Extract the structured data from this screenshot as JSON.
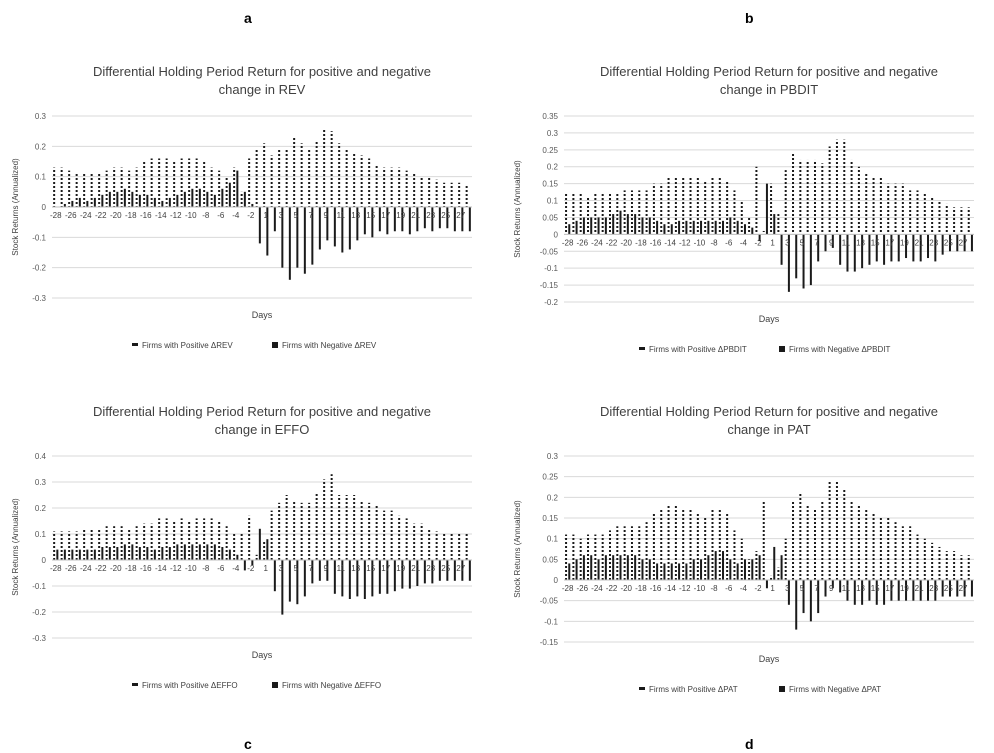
{
  "panel_letters": [
    "a",
    "b",
    "c",
    "d"
  ],
  "chart_data": [
    {
      "panel": "a",
      "type": "bar",
      "title_lines": [
        "Differential Holding Period Return for positive and negative",
        "change in REV"
      ],
      "xlabel": "Days",
      "ylabel": "Stock Returns (Annualized)",
      "ylim": [
        -0.3,
        0.3
      ],
      "yticks": [
        "-0.3",
        "-0.2",
        "-0.1",
        "0",
        "0.1",
        "0.2",
        "0.3"
      ],
      "ytick_values": [
        -0.3,
        -0.2,
        -0.1,
        0,
        0.1,
        0.2,
        0.3
      ],
      "xticks": [
        "-28",
        "-26",
        "-24",
        "-22",
        "-20",
        "-18",
        "-16",
        "-14",
        "-12",
        "-10",
        "-8",
        "-6",
        "-4",
        "-2",
        "1",
        "3",
        "5",
        "7",
        "9",
        "11",
        "13",
        "15",
        "17",
        "19",
        "21",
        "23",
        "25",
        "27"
      ],
      "grid": true,
      "legend_placement": "bottom",
      "categories": [
        "-28",
        "-27",
        "-26",
        "-25",
        "-24",
        "-23",
        "-22",
        "-21",
        "-20",
        "-19",
        "-18",
        "-17",
        "-16",
        "-15",
        "-14",
        "-13",
        "-12",
        "-11",
        "-10",
        "-9",
        "-8",
        "-7",
        "-6",
        "-5",
        "-4",
        "-3",
        "-2",
        "-1",
        "1",
        "2",
        "3",
        "4",
        "5",
        "6",
        "7",
        "8",
        "9",
        "10",
        "11",
        "12",
        "13",
        "14",
        "15",
        "16",
        "17",
        "18",
        "19",
        "20",
        "21",
        "22",
        "23",
        "24",
        "25",
        "26",
        "27",
        "28"
      ],
      "series": [
        {
          "name": "Firms with Positive ΔREV",
          "style": "dotted",
          "values": [
            0.13,
            0.13,
            0.12,
            0.11,
            0.11,
            0.11,
            0.11,
            0.12,
            0.13,
            0.13,
            0.12,
            0.13,
            0.15,
            0.16,
            0.16,
            0.16,
            0.15,
            0.16,
            0.16,
            0.16,
            0.15,
            0.13,
            0.12,
            0.1,
            0.13,
            0.05,
            0.16,
            0.19,
            0.21,
            0.17,
            0.19,
            0.19,
            0.23,
            0.21,
            0.19,
            0.22,
            0.26,
            0.25,
            0.21,
            0.19,
            0.18,
            0.17,
            0.16,
            0.14,
            0.13,
            0.13,
            0.13,
            0.12,
            0.11,
            0.1,
            0.1,
            0.09,
            0.08,
            0.08,
            0.08,
            0.07
          ]
        },
        {
          "name": "Firms with Negative ΔREV",
          "style": "solid",
          "values": [
            0.0,
            0.01,
            0.02,
            0.03,
            0.02,
            0.03,
            0.04,
            0.05,
            0.05,
            0.06,
            0.05,
            0.04,
            0.04,
            0.03,
            0.02,
            0.03,
            0.04,
            0.05,
            0.06,
            0.06,
            0.05,
            0.04,
            0.06,
            0.08,
            0.12,
            0.05,
            0.01,
            -0.12,
            -0.16,
            -0.08,
            -0.2,
            -0.24,
            -0.2,
            -0.22,
            -0.19,
            -0.14,
            -0.11,
            -0.13,
            -0.15,
            -0.14,
            -0.11,
            -0.09,
            -0.1,
            -0.08,
            -0.09,
            -0.08,
            -0.08,
            -0.09,
            -0.08,
            -0.07,
            -0.08,
            -0.07,
            -0.07,
            -0.08,
            -0.08,
            -0.08
          ]
        }
      ]
    },
    {
      "panel": "b",
      "type": "bar",
      "title_lines": [
        "Differential Holding Period Return for positive and negative",
        "change in PBDIT"
      ],
      "xlabel": "Days",
      "ylabel": "Stock Returns (Annualized)",
      "ylim": [
        -0.2,
        0.35
      ],
      "yticks": [
        "-0.2",
        "-0.15",
        "-0.1",
        "-0.05",
        "0",
        "0.05",
        "0.1",
        "0.15",
        "0.2",
        "0.25",
        "0.3",
        "0.35"
      ],
      "ytick_values": [
        -0.2,
        -0.15,
        -0.1,
        -0.05,
        0,
        0.05,
        0.1,
        0.15,
        0.2,
        0.25,
        0.3,
        0.35
      ],
      "xticks": [
        "-28",
        "-26",
        "-24",
        "-22",
        "-20",
        "-18",
        "-16",
        "-14",
        "-12",
        "-10",
        "-8",
        "-6",
        "-4",
        "-2",
        "1",
        "3",
        "5",
        "7",
        "9",
        "11",
        "13",
        "15",
        "17",
        "19",
        "21",
        "23",
        "25",
        "27"
      ],
      "grid": true,
      "legend_placement": "bottom",
      "categories": [
        "-28",
        "-27",
        "-26",
        "-25",
        "-24",
        "-23",
        "-22",
        "-21",
        "-20",
        "-19",
        "-18",
        "-17",
        "-16",
        "-15",
        "-14",
        "-13",
        "-12",
        "-11",
        "-10",
        "-9",
        "-8",
        "-7",
        "-6",
        "-5",
        "-4",
        "-3",
        "-2",
        "-1",
        "1",
        "2",
        "3",
        "4",
        "5",
        "6",
        "7",
        "8",
        "9",
        "10",
        "11",
        "12",
        "13",
        "14",
        "15",
        "16",
        "17",
        "18",
        "19",
        "20",
        "21",
        "22",
        "23",
        "24",
        "25",
        "26",
        "27",
        "28"
      ],
      "series": [
        {
          "name": "Firms with Positive ΔPBDIT",
          "style": "dotted",
          "values": [
            0.12,
            0.12,
            0.12,
            0.11,
            0.12,
            0.12,
            0.12,
            0.12,
            0.13,
            0.13,
            0.13,
            0.13,
            0.15,
            0.15,
            0.17,
            0.17,
            0.17,
            0.17,
            0.17,
            0.16,
            0.17,
            0.17,
            0.16,
            0.13,
            0.1,
            0.05,
            0.2,
            0.01,
            0.15,
            0.06,
            0.19,
            0.24,
            0.22,
            0.22,
            0.22,
            0.21,
            0.26,
            0.28,
            0.28,
            0.22,
            0.2,
            0.18,
            0.17,
            0.17,
            0.15,
            0.15,
            0.15,
            0.13,
            0.13,
            0.12,
            0.11,
            0.1,
            0.09,
            0.08,
            0.08,
            0.08
          ]
        },
        {
          "name": "Firms with Negative ΔPBDIT",
          "style": "solid",
          "values": [
            0.03,
            0.04,
            0.05,
            0.05,
            0.05,
            0.05,
            0.06,
            0.07,
            0.06,
            0.06,
            0.05,
            0.05,
            0.04,
            0.03,
            0.03,
            0.04,
            0.04,
            0.04,
            0.04,
            0.04,
            0.04,
            0.04,
            0.05,
            0.04,
            0.03,
            0.02,
            -0.02,
            0.15,
            0.06,
            -0.09,
            -0.17,
            -0.13,
            -0.16,
            -0.15,
            -0.08,
            -0.05,
            -0.04,
            -0.09,
            -0.11,
            -0.11,
            -0.1,
            -0.09,
            -0.08,
            -0.09,
            -0.08,
            -0.08,
            -0.07,
            -0.08,
            -0.08,
            -0.07,
            -0.08,
            -0.06,
            -0.05,
            -0.05,
            -0.05,
            -0.05
          ]
        }
      ]
    },
    {
      "panel": "c",
      "type": "bar",
      "title_lines": [
        "Differential Holding Period Return for positive and negative",
        "change in EFFO"
      ],
      "xlabel": "Days",
      "ylabel": "Stock Returns (Annualized)",
      "ylim": [
        -0.3,
        0.4
      ],
      "yticks": [
        "-0.3",
        "-0.2",
        "-0.1",
        "0",
        "0.1",
        "0.2",
        "0.3",
        "0.4"
      ],
      "ytick_values": [
        -0.3,
        -0.2,
        -0.1,
        0,
        0.1,
        0.2,
        0.3,
        0.4
      ],
      "xticks": [
        "-28",
        "-26",
        "-24",
        "-22",
        "-20",
        "-18",
        "-16",
        "-14",
        "-12",
        "-10",
        "-8",
        "-6",
        "-4",
        "-2",
        "1",
        "3",
        "5",
        "7",
        "9",
        "11",
        "13",
        "15",
        "17",
        "19",
        "21",
        "23",
        "25",
        "27"
      ],
      "grid": true,
      "legend_placement": "bottom",
      "categories": [
        "-28",
        "-27",
        "-26",
        "-25",
        "-24",
        "-23",
        "-22",
        "-21",
        "-20",
        "-19",
        "-18",
        "-17",
        "-16",
        "-15",
        "-14",
        "-13",
        "-12",
        "-11",
        "-10",
        "-9",
        "-8",
        "-7",
        "-6",
        "-5",
        "-4",
        "-3",
        "-2",
        "-1",
        "1",
        "2",
        "3",
        "4",
        "5",
        "6",
        "7",
        "8",
        "9",
        "10",
        "11",
        "12",
        "13",
        "14",
        "15",
        "16",
        "17",
        "18",
        "19",
        "20",
        "21",
        "22",
        "23",
        "24",
        "25",
        "26",
        "27",
        "28"
      ],
      "series": [
        {
          "name": "Firms with Positive ΔEFFO",
          "style": "dotted",
          "values": [
            0.11,
            0.11,
            0.11,
            0.11,
            0.12,
            0.12,
            0.12,
            0.13,
            0.13,
            0.13,
            0.12,
            0.13,
            0.14,
            0.14,
            0.16,
            0.16,
            0.15,
            0.16,
            0.15,
            0.16,
            0.16,
            0.16,
            0.15,
            0.13,
            0.1,
            0.1,
            0.17,
            0.02,
            0.07,
            0.19,
            0.22,
            0.25,
            0.23,
            0.22,
            0.22,
            0.26,
            0.31,
            0.33,
            0.25,
            0.25,
            0.25,
            0.23,
            0.22,
            0.21,
            0.19,
            0.19,
            0.17,
            0.16,
            0.14,
            0.14,
            0.12,
            0.11,
            0.1,
            0.1,
            0.1,
            0.1
          ]
        },
        {
          "name": "Firms with Negative ΔEFFO",
          "style": "solid",
          "values": [
            0.04,
            0.04,
            0.04,
            0.04,
            0.04,
            0.04,
            0.05,
            0.05,
            0.05,
            0.06,
            0.06,
            0.05,
            0.05,
            0.04,
            0.05,
            0.05,
            0.06,
            0.06,
            0.06,
            0.06,
            0.06,
            0.06,
            0.05,
            0.04,
            0.02,
            -0.04,
            -0.02,
            0.12,
            0.08,
            -0.12,
            -0.21,
            -0.16,
            -0.17,
            -0.14,
            -0.09,
            -0.08,
            -0.08,
            -0.13,
            -0.14,
            -0.15,
            -0.14,
            -0.15,
            -0.14,
            -0.13,
            -0.13,
            -0.12,
            -0.11,
            -0.11,
            -0.1,
            -0.09,
            -0.09,
            -0.08,
            -0.08,
            -0.08,
            -0.08,
            -0.08
          ]
        }
      ]
    },
    {
      "panel": "d",
      "type": "bar",
      "title_lines": [
        "Differential Holding Period Return for positive and negative",
        "change in PAT"
      ],
      "xlabel": "Days",
      "ylabel": "Stock Returns (Annualized)",
      "ylim": [
        -0.15,
        0.3
      ],
      "yticks": [
        "-0.15",
        "-0.1",
        "-0.05",
        "0",
        "0.05",
        "0.1",
        "0.15",
        "0.2",
        "0.25",
        "0.3"
      ],
      "ytick_values": [
        -0.15,
        -0.1,
        -0.05,
        0,
        0.05,
        0.1,
        0.15,
        0.2,
        0.25,
        0.3
      ],
      "xticks": [
        "-28",
        "-26",
        "-24",
        "-22",
        "-20",
        "-18",
        "-16",
        "-14",
        "-12",
        "-10",
        "-8",
        "-6",
        "-4",
        "-2",
        "1",
        "3",
        "5",
        "7",
        "9",
        "11",
        "13",
        "15",
        "17",
        "19",
        "21",
        "23",
        "25",
        "27"
      ],
      "grid": true,
      "legend_placement": "bottom",
      "categories": [
        "-28",
        "-27",
        "-26",
        "-25",
        "-24",
        "-23",
        "-22",
        "-21",
        "-20",
        "-19",
        "-18",
        "-17",
        "-16",
        "-15",
        "-14",
        "-13",
        "-12",
        "-11",
        "-10",
        "-9",
        "-8",
        "-7",
        "-6",
        "-5",
        "-4",
        "-3",
        "-2",
        "-1",
        "1",
        "2",
        "3",
        "4",
        "5",
        "6",
        "7",
        "8",
        "9",
        "10",
        "11",
        "12",
        "13",
        "14",
        "15",
        "16",
        "17",
        "18",
        "19",
        "20",
        "21",
        "22",
        "23",
        "24",
        "25",
        "26",
        "27",
        "28"
      ],
      "series": [
        {
          "name": "Firms with Positive ΔPAT",
          "style": "dotted",
          "values": [
            0.11,
            0.11,
            0.1,
            0.11,
            0.11,
            0.11,
            0.12,
            0.13,
            0.13,
            0.13,
            0.13,
            0.14,
            0.16,
            0.17,
            0.18,
            0.18,
            0.17,
            0.17,
            0.16,
            0.15,
            0.17,
            0.17,
            0.16,
            0.12,
            0.1,
            0.05,
            0.07,
            0.19,
            0.01,
            0.03,
            0.1,
            0.19,
            0.21,
            0.18,
            0.17,
            0.19,
            0.24,
            0.24,
            0.22,
            0.19,
            0.18,
            0.17,
            0.16,
            0.15,
            0.15,
            0.14,
            0.13,
            0.13,
            0.11,
            0.1,
            0.09,
            0.08,
            0.07,
            0.07,
            0.06,
            0.06
          ]
        },
        {
          "name": "Firms with Negative ΔPAT",
          "style": "solid",
          "values": [
            0.04,
            0.05,
            0.06,
            0.06,
            0.05,
            0.06,
            0.06,
            0.06,
            0.06,
            0.06,
            0.05,
            0.05,
            0.04,
            0.04,
            0.04,
            0.04,
            0.04,
            0.05,
            0.05,
            0.06,
            0.07,
            0.07,
            0.05,
            0.04,
            0.05,
            0.05,
            0.06,
            -0.02,
            0.08,
            0.06,
            -0.06,
            -0.12,
            -0.08,
            -0.1,
            -0.08,
            -0.04,
            -0.02,
            -0.03,
            -0.05,
            -0.06,
            -0.06,
            -0.05,
            -0.06,
            -0.06,
            -0.05,
            -0.05,
            -0.05,
            -0.05,
            -0.05,
            -0.05,
            -0.05,
            -0.04,
            -0.04,
            -0.04,
            -0.04,
            -0.04
          ]
        }
      ]
    }
  ]
}
